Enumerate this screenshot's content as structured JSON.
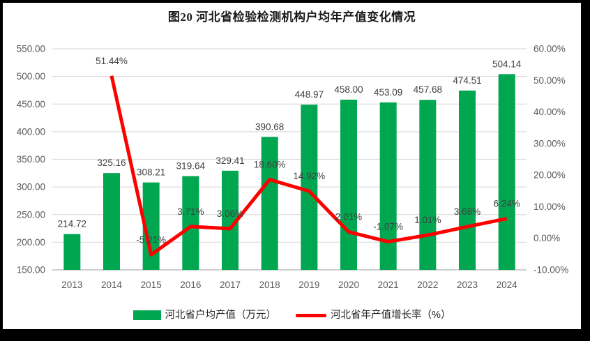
{
  "page": {
    "title": "图20 河北省检验检测机构户均年产值变化情况",
    "frame_color": "#000000",
    "background": "#ffffff"
  },
  "chart_data": {
    "type": "bar",
    "subtype": "combo-bar-line",
    "title": "图20 河北省检验检测机构户均年产值变化情况",
    "categories": [
      "2013",
      "2014",
      "2015",
      "2016",
      "2017",
      "2018",
      "2019",
      "2020",
      "2021",
      "2022",
      "2023",
      "2024"
    ],
    "series": [
      {
        "name": "河北省户均产值（万元）",
        "type": "bar",
        "axis": "left",
        "color": "#00A650",
        "values": [
          214.72,
          325.16,
          308.21,
          319.64,
          329.41,
          390.68,
          448.97,
          458.0,
          453.09,
          457.68,
          474.51,
          504.14
        ],
        "labels": [
          "214.72",
          "325.16",
          "308.21",
          "319.64",
          "329.41",
          "390.68",
          "448.97",
          "458.00",
          "453.09",
          "457.68",
          "474.51",
          "504.14"
        ]
      },
      {
        "name": "河北省年产值增长率（%）",
        "type": "line",
        "axis": "right",
        "color": "#FF0000",
        "values": [
          null,
          51.44,
          -5.21,
          3.71,
          3.06,
          18.6,
          14.92,
          2.01,
          -1.07,
          1.01,
          3.68,
          6.24
        ],
        "labels": [
          null,
          "51.44%",
          "-5.21%",
          "3.71%",
          "3.06%",
          "18.60%",
          "14.92%",
          "2.01%",
          "-1.07%",
          "1.01%",
          "3.68%",
          "6.24%"
        ]
      }
    ],
    "left_axis": {
      "min": 150,
      "max": 550,
      "step": 50,
      "tick_labels": [
        "550.00",
        "500.00",
        "450.00",
        "400.00",
        "350.00",
        "300.00",
        "250.00",
        "200.00",
        "150.00"
      ]
    },
    "right_axis": {
      "min": -10,
      "max": 60,
      "step": 10,
      "tick_labels": [
        "60.00%",
        "50.00%",
        "40.00%",
        "30.00%",
        "20.00%",
        "10.00%",
        "0.00%",
        "-10.00%"
      ]
    },
    "grid": true,
    "grid_color": "#DEDEDE",
    "axis_line_color": "#BFBFBF",
    "tick_color": "#595959",
    "data_label_color": "#404040",
    "legend_position": "bottom"
  }
}
